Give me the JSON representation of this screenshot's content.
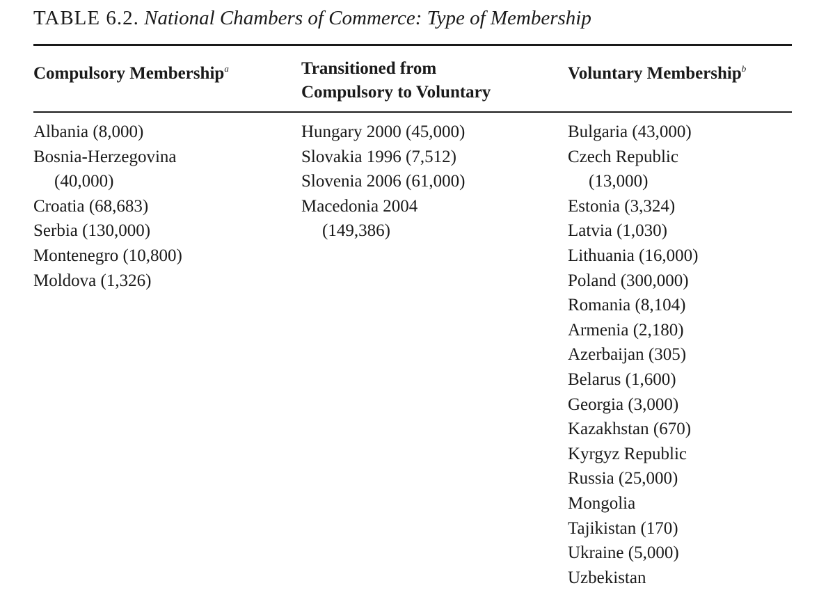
{
  "title": {
    "label": "TABLE 6.2.",
    "caption": "National Chambers of Commerce: Type of Membership"
  },
  "headers": [
    {
      "lines": [
        "Compulsory Membership"
      ],
      "note": "a"
    },
    {
      "lines": [
        "Transitioned from",
        "Compulsory to Voluntary"
      ],
      "note": ""
    },
    {
      "lines": [
        "Voluntary Membership"
      ],
      "note": "b"
    }
  ],
  "columns": [
    [
      {
        "text": "Albania (8,000)"
      },
      {
        "text": "Bosnia-Herzegovina",
        "cont": "(40,000)"
      },
      {
        "text": "Croatia (68,683)"
      },
      {
        "text": "Serbia (130,000)"
      },
      {
        "text": "Montenegro (10,800)"
      },
      {
        "text": "Moldova (1,326)"
      }
    ],
    [
      {
        "text": "Hungary 2000 (45,000)"
      },
      {
        "text": "Slovakia 1996 (7,512)"
      },
      {
        "text": "Slovenia 2006 (61,000)"
      },
      {
        "text": "Macedonia 2004",
        "cont": "(149,386)"
      }
    ],
    [
      {
        "text": "Bulgaria (43,000)"
      },
      {
        "text": "Czech Republic",
        "cont": "(13,000)"
      },
      {
        "text": "Estonia (3,324)"
      },
      {
        "text": "Latvia (1,030)"
      },
      {
        "text": "Lithuania (16,000)"
      },
      {
        "text": "Poland (300,000)"
      },
      {
        "text": "Romania (8,104)"
      },
      {
        "text": "Armenia (2,180)"
      },
      {
        "text": "Azerbaijan (305)"
      },
      {
        "text": "Belarus (1,600)"
      },
      {
        "text": "Georgia (3,000)"
      },
      {
        "text": "Kazakhstan (670)"
      },
      {
        "text": "Kyrgyz Republic"
      },
      {
        "text": "Russia (25,000)"
      },
      {
        "text": "Mongolia"
      },
      {
        "text": "Tajikistan (170)"
      },
      {
        "text": "Ukraine (5,000)"
      },
      {
        "text": "Uzbekistan"
      }
    ]
  ]
}
